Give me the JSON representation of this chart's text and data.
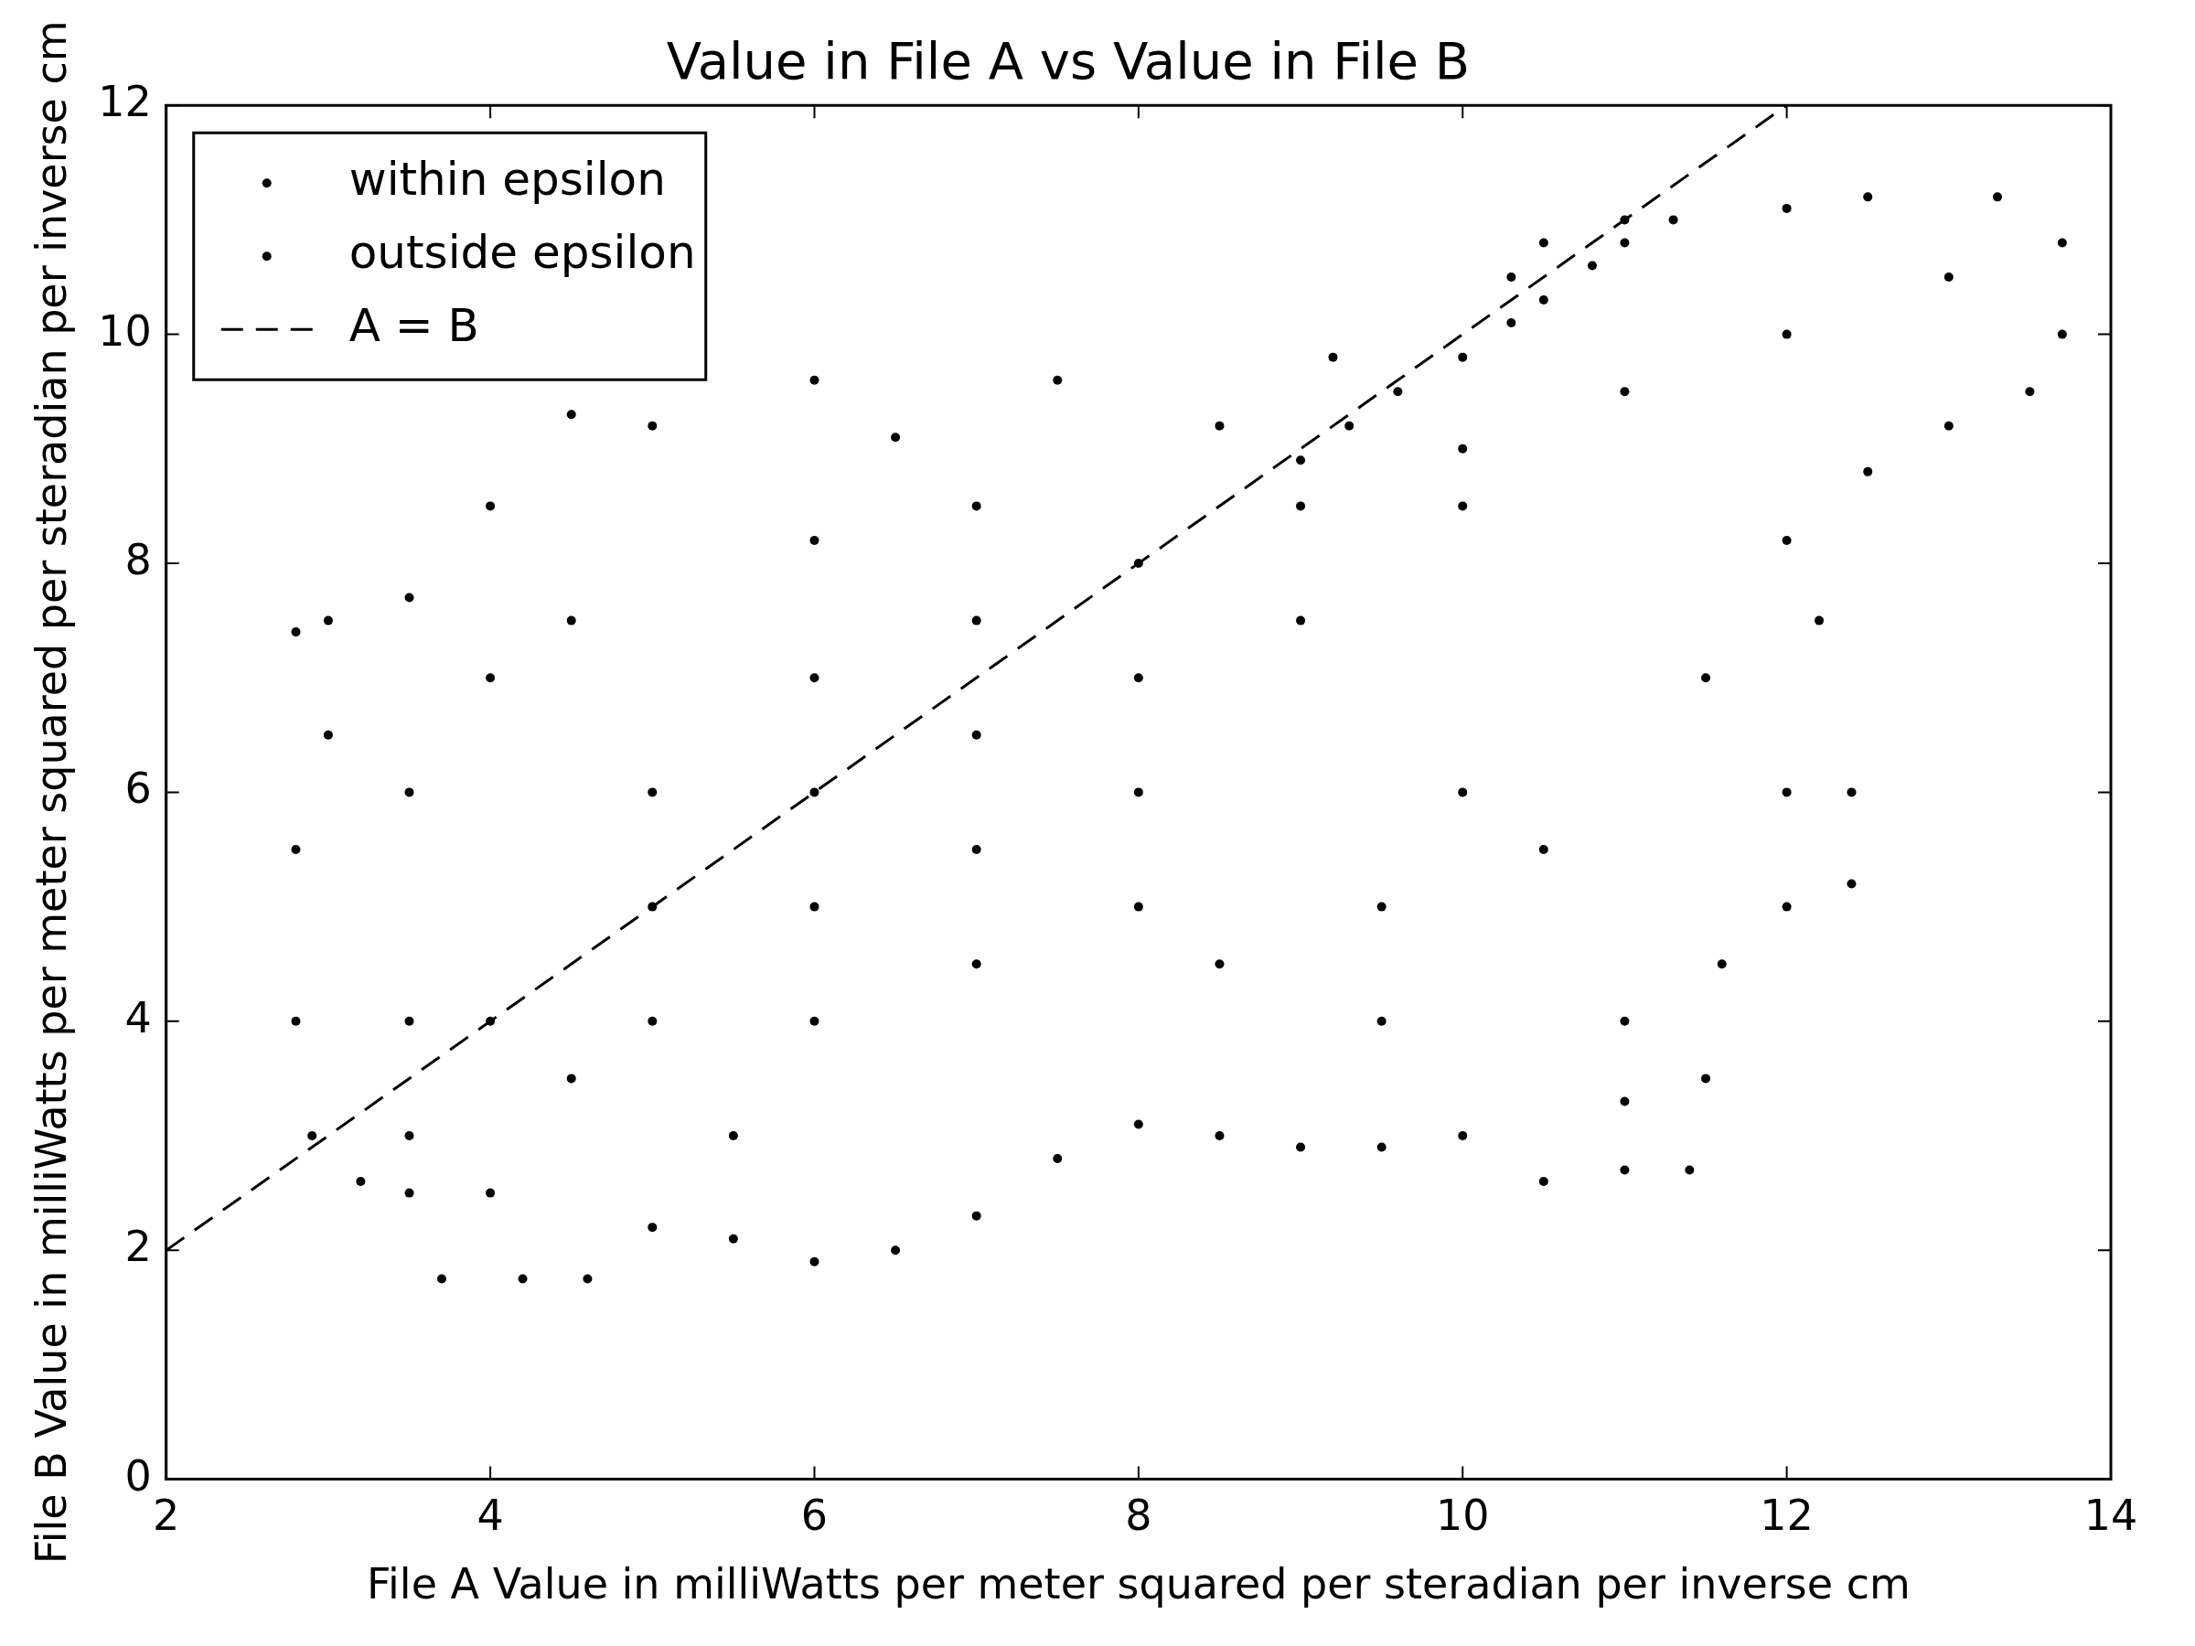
{
  "chart_data": {
    "type": "scatter",
    "title": "Value in File A vs Value in File B",
    "xlabel": "File A Value in milliWatts per meter squared per steradian per inverse cm",
    "ylabel": "File B Value in milliWatts per meter squared per steradian per inverse cm",
    "xlim": [
      2,
      14
    ],
    "xticks": [
      2,
      4,
      6,
      8,
      10,
      12,
      14
    ],
    "ylim": [
      0,
      12
    ],
    "yticks": [
      0,
      2,
      4,
      6,
      8,
      10,
      12
    ],
    "grid": false,
    "legend": "top left",
    "marker": "circle",
    "series": [
      {
        "name": "within epsilon",
        "color": "#000000",
        "x": [
          9,
          9.3,
          9.6,
          10,
          10.3,
          10.5,
          10.8,
          11,
          11.3
        ],
        "values": [
          8.9,
          9.2,
          9.5,
          9.8,
          10.1,
          10.3,
          10.6,
          10.8,
          11
        ]
      },
      {
        "name": "outside epsilon",
        "color": "#000000",
        "x": [
          2.8,
          2.8,
          2.9,
          3,
          3,
          3.2,
          3.5,
          3.7,
          4.2,
          4.6,
          5,
          5.5,
          6,
          6.5,
          7,
          7.5,
          8,
          8.5,
          9,
          9.5,
          10,
          10.5,
          11,
          11.4,
          11.5,
          11.6,
          12,
          12.4,
          12.4,
          12.2,
          12,
          12.5,
          13,
          13.5,
          13.7,
          13.7,
          13.3,
          12.5,
          12,
          11,
          10.5,
          10.3,
          9.2,
          8.5,
          7.5,
          6.5,
          6,
          5,
          4.5,
          4,
          3.5,
          2.8,
          4,
          4.5,
          5,
          5,
          5,
          5.5,
          6,
          6,
          6,
          6,
          7,
          7,
          7,
          7,
          8,
          8,
          8,
          9,
          9,
          10,
          10,
          11,
          12,
          13,
          3.5,
          3.5,
          4,
          4.5,
          6,
          7,
          9.5,
          9.5,
          10,
          10.5,
          11,
          11,
          12,
          11.5,
          8.5,
          8,
          3.5,
          4
        ],
        "values": [
          5.5,
          4,
          3,
          6.5,
          7.5,
          2.6,
          2.5,
          1.75,
          1.75,
          1.75,
          2.2,
          2.1,
          1.9,
          2,
          2.3,
          2.8,
          3.1,
          3,
          2.9,
          2.9,
          3,
          2.6,
          2.7,
          2.7,
          3.5,
          4.5,
          5,
          5.2,
          6,
          7.5,
          8.2,
          8.8,
          9.2,
          9.5,
          10,
          10.8,
          11.2,
          11.2,
          11.1,
          11,
          10.8,
          10.5,
          9.8,
          9.2,
          9.6,
          9.1,
          9.6,
          9.2,
          9.3,
          8.5,
          7.7,
          7.4,
          4,
          3.5,
          4,
          5,
          6,
          3,
          4,
          5,
          6,
          7,
          4.5,
          5.5,
          6.5,
          7.5,
          6,
          7,
          8,
          7.5,
          8.5,
          8.5,
          9,
          9.5,
          10,
          10.5,
          4,
          6,
          7,
          7.5,
          8.2,
          8.5,
          5,
          4,
          6,
          5.5,
          4,
          3.3,
          6,
          7,
          4.5,
          5,
          3,
          2.5
        ]
      },
      {
        "name": "A = B",
        "type": "line",
        "color": "#000000",
        "line_style": "dashed",
        "marker": "none",
        "x": [
          2,
          12
        ],
        "values": [
          2,
          12
        ]
      }
    ]
  }
}
